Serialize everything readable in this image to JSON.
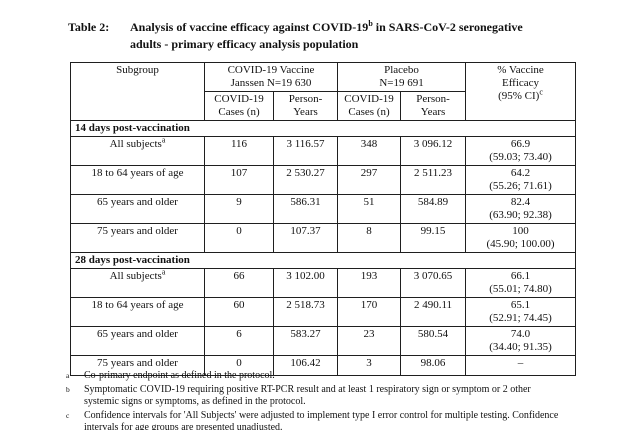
{
  "title": {
    "label": "Table 2:",
    "line1_pre": "Analysis of vaccine efficacy against COVID-19",
    "line1_sup": "b",
    "line1_post": " in SARS-CoV-2 seronegative",
    "line2": "adults - primary efficacy analysis population"
  },
  "table": {
    "header": {
      "subgroup": "Subgroup",
      "group_vaccine_line1": "COVID-19 Vaccine",
      "group_vaccine_line2": "Janssen N=19 630",
      "group_placebo_line1": "Placebo",
      "group_placebo_line2": "N=19 691",
      "cases_line1": "COVID-19",
      "cases_line2": "Cases (n)",
      "py_line1": "Person-",
      "py_line2": "Years",
      "efficacy_line1": "% Vaccine",
      "efficacy_line2": "Efficacy",
      "efficacy_line3": "(95% CI)",
      "efficacy_sup": "c"
    },
    "sections": [
      {
        "label": "14 days post-vaccination",
        "rows": [
          {
            "subgroup": "All subjects",
            "sup": "a",
            "vaccine_cases": "116",
            "vaccine_py": "3 116.57",
            "placebo_cases": "348",
            "placebo_py": "3 096.12",
            "ve": "66.9",
            "ci": "(59.03; 73.40)"
          },
          {
            "subgroup": "18 to 64 years of age",
            "vaccine_cases": "107",
            "vaccine_py": "2 530.27",
            "placebo_cases": "297",
            "placebo_py": "2 511.23",
            "ve": "64.2",
            "ci": "(55.26; 71.61)"
          },
          {
            "subgroup": "65 years and older",
            "vaccine_cases": "9",
            "vaccine_py": "586.31",
            "placebo_cases": "51",
            "placebo_py": "584.89",
            "ve": "82.4",
            "ci": "(63.90; 92.38)"
          },
          {
            "subgroup": "75 years and older",
            "vaccine_cases": "0",
            "vaccine_py": "107.37",
            "placebo_cases": "8",
            "placebo_py": "99.15",
            "ve": "100",
            "ci": "(45.90; 100.00)"
          }
        ]
      },
      {
        "label": "28 days post-vaccination",
        "rows": [
          {
            "subgroup": "All subjects",
            "sup": "a",
            "vaccine_cases": "66",
            "vaccine_py": "3 102.00",
            "placebo_cases": "193",
            "placebo_py": "3 070.65",
            "ve": "66.1",
            "ci": "(55.01; 74.80)"
          },
          {
            "subgroup": "18 to 64 years of age",
            "vaccine_cases": "60",
            "vaccine_py": "2 518.73",
            "placebo_cases": "170",
            "placebo_py": "2 490.11",
            "ve": "65.1",
            "ci": "(52.91; 74.45)"
          },
          {
            "subgroup": "65 years and older",
            "vaccine_cases": "6",
            "vaccine_py": "583.27",
            "placebo_cases": "23",
            "placebo_py": "580.54",
            "ve": "74.0",
            "ci": "(34.40; 91.35)"
          },
          {
            "subgroup": "75 years and older",
            "vaccine_cases": "0",
            "vaccine_py": "106.42",
            "placebo_cases": "3",
            "placebo_py": "98.06",
            "ve": "–",
            "ci": ""
          }
        ]
      }
    ]
  },
  "footnotes": [
    {
      "marker": "a",
      "text": "Co-primary endpoint as defined in the protocol."
    },
    {
      "marker": "b",
      "text": "Symptomatic COVID-19 requiring positive RT-PCR result and at least 1 respiratory sign or symptom or 2 other systemic signs or symptoms, as defined in the protocol."
    },
    {
      "marker": "c",
      "text": "Confidence intervals for 'All Subjects' were adjusted to implement type I error control for multiple testing. Confidence intervals for age groups are presented unadjusted."
    }
  ]
}
